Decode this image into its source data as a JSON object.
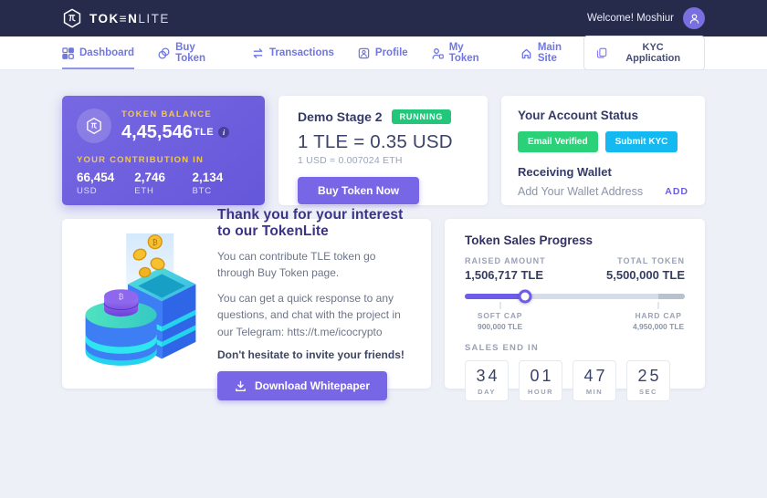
{
  "topbar": {
    "brand_primary": "TOK≡N",
    "brand_secondary": "LITE",
    "welcome": "Welcome! Moshiur"
  },
  "nav": {
    "items": [
      {
        "label": "Dashboard",
        "icon": "dashboard-icon",
        "active": true
      },
      {
        "label": "Buy Token",
        "icon": "coins-icon",
        "active": false
      },
      {
        "label": "Transactions",
        "icon": "swap-arrows-icon",
        "active": false
      },
      {
        "label": "Profile",
        "icon": "id-card-icon",
        "active": false
      },
      {
        "label": "My Token",
        "icon": "user-token-icon",
        "active": false
      },
      {
        "label": "Main Site",
        "icon": "home-icon",
        "active": false
      }
    ],
    "kyc_button": "KYC Application"
  },
  "balance_card": {
    "title": "TOKEN BALANCE",
    "amount": "4,45,546",
    "unit": "TLE",
    "info_glyph": "i",
    "contribution_title": "YOUR CONTRIBUTION IN",
    "contributions": [
      {
        "value": "66,454",
        "currency": "USD"
      },
      {
        "value": "2,746",
        "currency": "ETH"
      },
      {
        "value": "2,134",
        "currency": "BTC"
      }
    ]
  },
  "stage_card": {
    "title": "Demo Stage 2",
    "status": "RUNNING",
    "rate_primary": "1 TLE = 0.35 USD",
    "rate_secondary": "1 USD = 0.007024 ETH",
    "buy_button": "Buy Token Now"
  },
  "account_card": {
    "title": "Your Account Status",
    "badge_email": "Email Verified",
    "badge_kyc": "Submit KYC",
    "wallet_title": "Receiving Wallet",
    "wallet_text": "Add Your Wallet Address",
    "add_label": "ADD"
  },
  "thanks_card": {
    "title": "Thank you for your interest to our TokenLite",
    "p1": "You can contribute TLE token go through Buy Token page.",
    "p2": "You can get a quick response to any questions, and chat with the project in our Telegram: htts://t.me/icocrypto",
    "p3": "Don't hesitate to invite your friends!",
    "download_button": "Download Whitepaper"
  },
  "progress_card": {
    "title": "Token Sales Progress",
    "raised_label": "RAISED AMOUNT",
    "raised_value": "1,506,717 TLE",
    "total_label": "TOTAL TOKEN",
    "total_value": "5,500,000 TLE",
    "soft_cap_label": "SOFT CAP",
    "soft_cap_value": "900,000 TLE",
    "hard_cap_label": "HARD CAP",
    "hard_cap_value": "4,950,000 TLE",
    "progress_percent": 27.4,
    "soft_cap_percent": 16,
    "hard_cap_percent": 88,
    "sales_end_label": "SALES END IN",
    "countdown": [
      {
        "value": "34",
        "unit": "DAY"
      },
      {
        "value": "01",
        "unit": "HOUR"
      },
      {
        "value": "47",
        "unit": "MIN"
      },
      {
        "value": "25",
        "unit": "SEC"
      }
    ]
  },
  "colors": {
    "header_bg": "#262b4b",
    "accent_purple": "#7767e6",
    "gold": "#f2c94c",
    "green": "#2bd178",
    "cyan": "#14b9f1",
    "running_green": "#22c77c",
    "page_bg": "#edf0f7"
  }
}
